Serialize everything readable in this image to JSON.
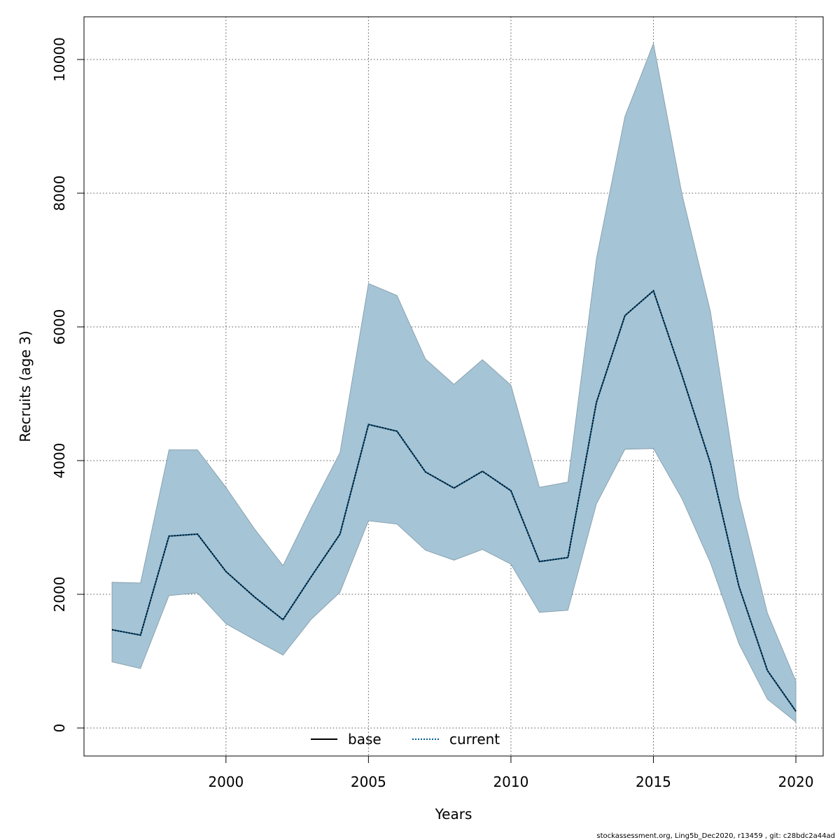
{
  "chart_data": {
    "type": "line",
    "title": "",
    "xlabel": "Years",
    "ylabel": "Recruits (age 3)",
    "xlim": [
      1995,
      2021
    ],
    "ylim": [
      -200,
      10600
    ],
    "x_ticks": [
      2000,
      2005,
      2010,
      2015,
      2020
    ],
    "y_ticks": [
      0,
      2000,
      4000,
      6000,
      8000,
      10000
    ],
    "grid": true,
    "legend": {
      "position": "bottom-center",
      "entries": [
        {
          "name": "base",
          "style": "solid",
          "color": "#000000"
        },
        {
          "name": "current",
          "style": "dotted",
          "color": "#005b96"
        }
      ]
    },
    "x": [
      1996,
      1997,
      1998,
      1999,
      2000,
      2001,
      2002,
      2003,
      2004,
      2005,
      2006,
      2007,
      2008,
      2009,
      2010,
      2011,
      2012,
      2013,
      2014,
      2015,
      2016,
      2017,
      2018,
      2019,
      2020
    ],
    "series": [
      {
        "name": "current",
        "values": [
          1470,
          1390,
          2870,
          2900,
          2340,
          1960,
          1620,
          2270,
          2900,
          4540,
          4440,
          3830,
          3590,
          3840,
          3550,
          2490,
          2550,
          4870,
          6170,
          6540,
          5280,
          3960,
          2120,
          860,
          250
        ],
        "lower": [
          990,
          890,
          1980,
          2020,
          1560,
          1320,
          1090,
          1630,
          2030,
          3100,
          3050,
          2660,
          2510,
          2670,
          2450,
          1730,
          1760,
          3350,
          4170,
          4180,
          3430,
          2470,
          1260,
          430,
          90
        ],
        "upper": [
          2180,
          2170,
          4160,
          4160,
          3600,
          2980,
          2430,
          3300,
          4120,
          6650,
          6470,
          5520,
          5140,
          5510,
          5130,
          3600,
          3680,
          7020,
          9150,
          10240,
          7990,
          6230,
          3450,
          1720,
          700
        ]
      }
    ],
    "colors": {
      "band_fill": "#a5c4d5",
      "band_stroke": "#7f98a7",
      "current_line": "#005b96",
      "base_line": "#000000",
      "grid": "#555555"
    }
  },
  "footer": "stockassessment.org, Ling5b_Dec2020, r13459 , git: c28bdc2a44ad"
}
